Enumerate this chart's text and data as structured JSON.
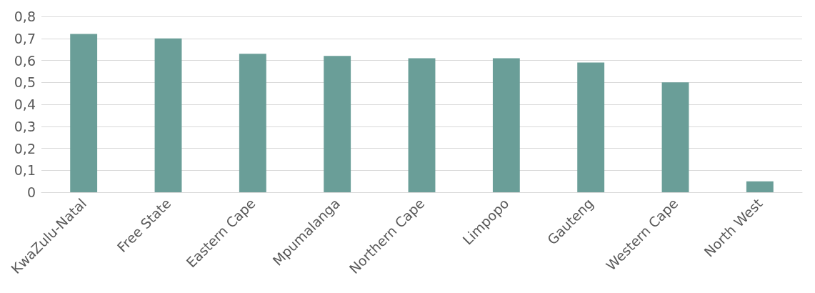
{
  "chart_data": {
    "type": "bar",
    "categories": [
      "KwaZulu-Natal",
      "Free State",
      "Eastern Cape",
      "Mpumalanga",
      "Northern Cape",
      "Limpopo",
      "Gauteng",
      "Western Cape",
      "North West"
    ],
    "values": [
      0.72,
      0.7,
      0.63,
      0.62,
      0.61,
      0.61,
      0.59,
      0.5,
      0.05
    ],
    "color": "#6a9e98",
    "ylim": [
      0,
      0.8
    ],
    "yticks": [
      {
        "value": 0,
        "label": "0"
      },
      {
        "value": 0.1,
        "label": "0,1"
      },
      {
        "value": 0.2,
        "label": "0,2"
      },
      {
        "value": 0.3,
        "label": "0,3"
      },
      {
        "value": 0.4,
        "label": "0,4"
      },
      {
        "value": 0.5,
        "label": "0,5"
      },
      {
        "value": 0.6,
        "label": "0,6"
      },
      {
        "value": 0.7,
        "label": "0,7"
      },
      {
        "value": 0.8,
        "label": "0,8"
      }
    ],
    "grid": "y"
  }
}
